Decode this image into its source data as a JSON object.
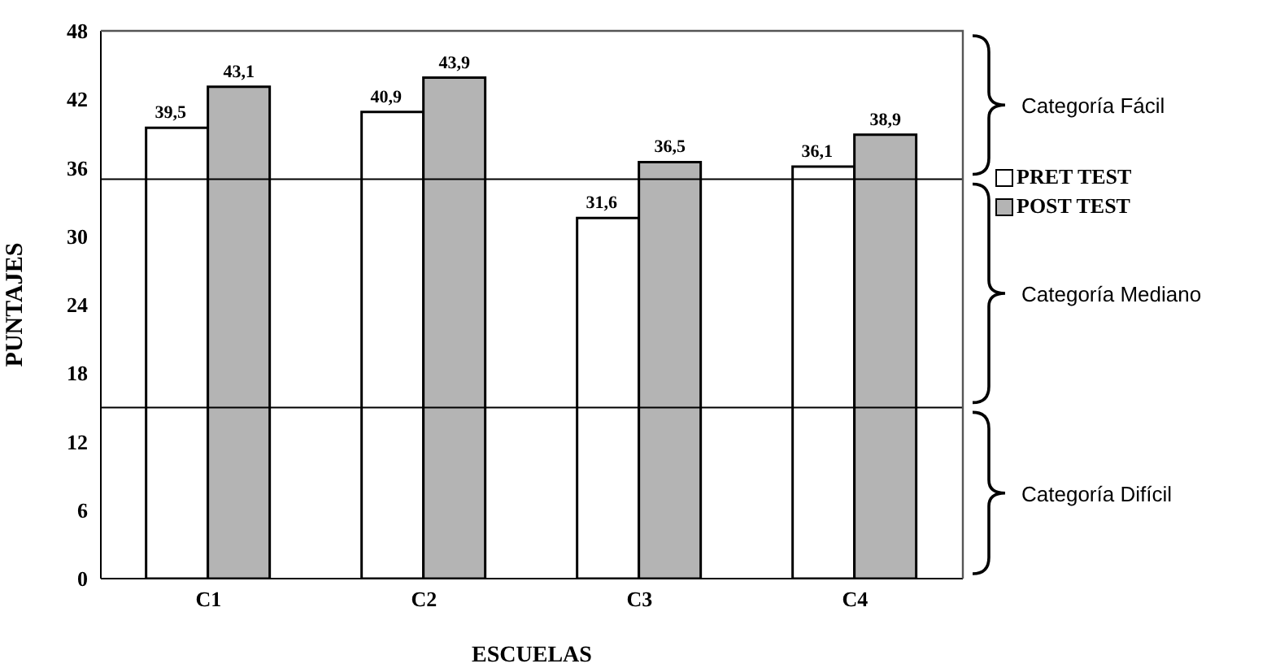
{
  "chart_data": {
    "type": "bar",
    "xlabel": "ESCUELAS",
    "ylabel": "PUNTAJES",
    "categories": [
      "C1",
      "C2",
      "C3",
      "C4"
    ],
    "series": [
      {
        "name": "PRET TEST",
        "color": "#ffffff",
        "values": [
          39.5,
          40.9,
          31.6,
          36.1
        ]
      },
      {
        "name": "POST TEST",
        "color": "#b4b4b4",
        "values": [
          43.1,
          43.9,
          36.5,
          38.9
        ]
      }
    ],
    "ylim": [
      0,
      48
    ],
    "yticks": [
      0,
      6,
      12,
      18,
      24,
      30,
      36,
      42,
      48
    ],
    "value_labels": [
      [
        "39,5",
        "40,9",
        "31,6",
        "36,1"
      ],
      [
        "43,1",
        "43,9",
        "36,5",
        "38,9"
      ]
    ],
    "ref_lines": [
      {
        "axis": "y",
        "value": 35
      },
      {
        "axis": "y",
        "value": 15
      }
    ],
    "annotations": [
      "Categoría Fácil",
      "Categoría Mediano",
      "Categoría Difícil"
    ],
    "legend": "right"
  }
}
